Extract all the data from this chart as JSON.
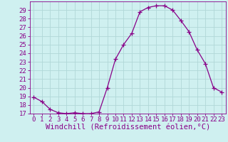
{
  "x": [
    0,
    1,
    2,
    3,
    4,
    5,
    6,
    7,
    8,
    9,
    10,
    11,
    12,
    13,
    14,
    15,
    16,
    17,
    18,
    19,
    20,
    21,
    22,
    23
  ],
  "y": [
    18.9,
    18.4,
    17.5,
    17.1,
    17.0,
    17.1,
    17.0,
    17.0,
    17.2,
    20.0,
    23.3,
    25.0,
    26.3,
    28.8,
    29.3,
    29.5,
    29.5,
    29.0,
    27.8,
    26.5,
    24.4,
    22.8,
    20.0,
    19.5
  ],
  "line_color": "#880088",
  "marker": "+",
  "marker_size": 4,
  "bg_color": "#cff0f0",
  "grid_color": "#b0d8d8",
  "xlabel": "Windchill (Refroidissement éolien,°C)",
  "ylim": [
    17,
    30
  ],
  "xlim": [
    -0.5,
    23.5
  ],
  "yticks": [
    17,
    18,
    19,
    20,
    21,
    22,
    23,
    24,
    25,
    26,
    27,
    28,
    29
  ],
  "xticks": [
    0,
    1,
    2,
    3,
    4,
    5,
    6,
    7,
    8,
    9,
    10,
    11,
    12,
    13,
    14,
    15,
    16,
    17,
    18,
    19,
    20,
    21,
    22,
    23
  ],
  "tick_label_color": "#880088",
  "axis_color": "#880088",
  "xlabel_fontsize": 7.5,
  "tick_fontsize": 6.5
}
